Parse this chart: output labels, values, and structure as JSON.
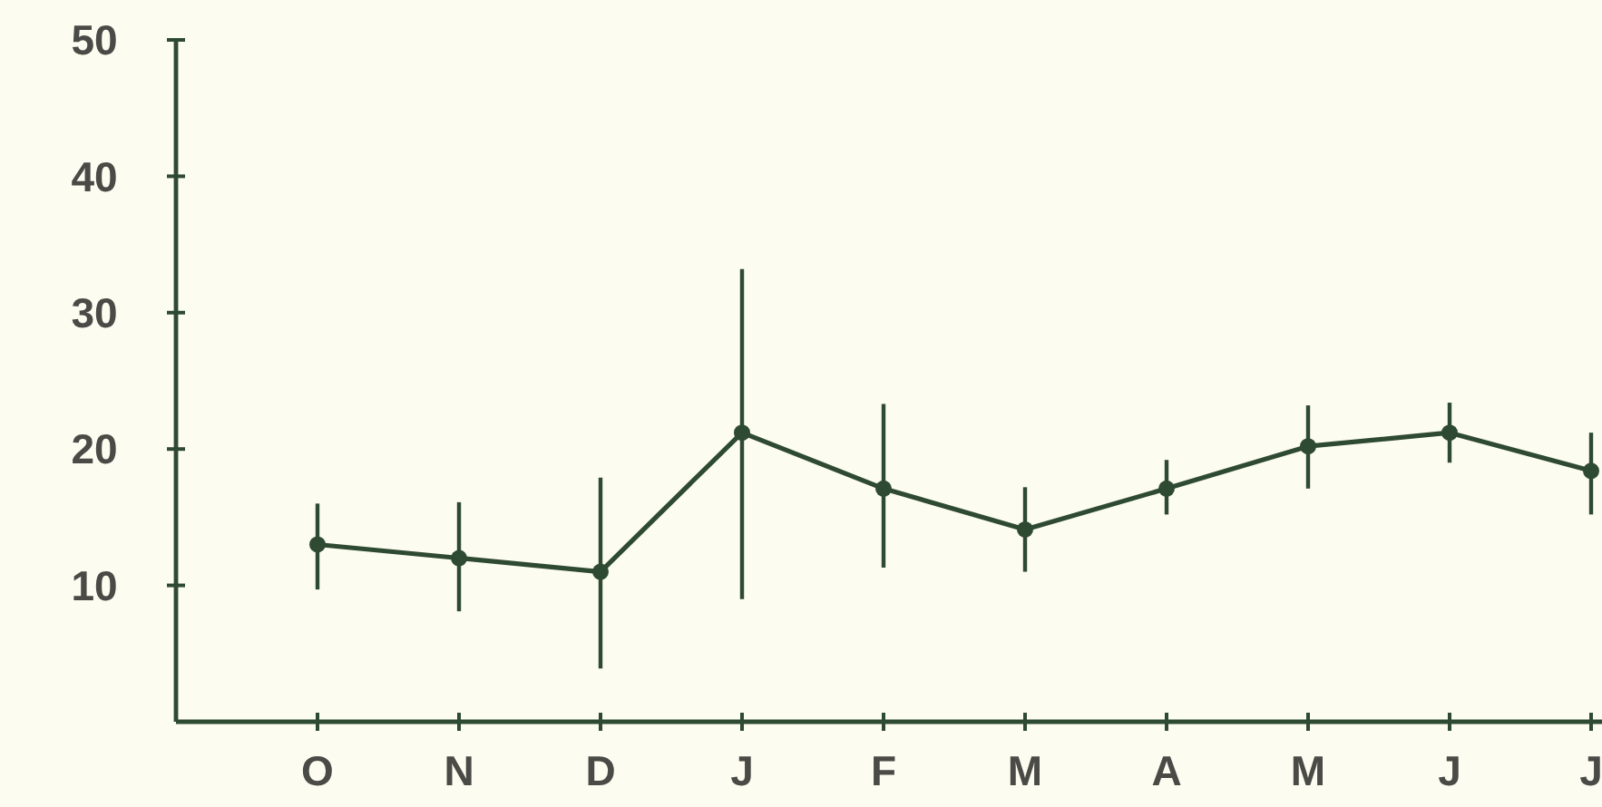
{
  "chart_data": {
    "type": "line",
    "categories": [
      "O",
      "N",
      "D",
      "J",
      "F",
      "M",
      "A",
      "M",
      "J",
      "J"
    ],
    "values": [
      13,
      12,
      11,
      21.2,
      17.1,
      14.1,
      17.1,
      20.2,
      21.2,
      18.4
    ],
    "errors": [
      [
        9.7,
        16
      ],
      [
        8.1,
        16.1
      ],
      [
        3.9,
        17.9
      ],
      [
        9,
        33.2
      ],
      [
        11.3,
        23.3
      ],
      [
        11,
        17.2
      ],
      [
        15.2,
        19.2
      ],
      [
        17.1,
        23.2
      ],
      [
        19,
        23.4
      ],
      [
        15.2,
        21.2
      ]
    ],
    "color": "#2f4a32",
    "ylim": [
      0,
      50
    ],
    "yticks": [
      10,
      20,
      30,
      40,
      50
    ],
    "grid": false,
    "marker": "circle",
    "line_style": "solid"
  }
}
